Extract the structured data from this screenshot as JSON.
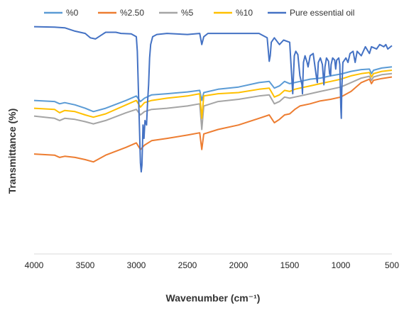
{
  "chart_data": {
    "type": "line",
    "title": "",
    "xlabel": "Wavenumber (cm⁻¹)",
    "ylabel": "Transmittance (%)",
    "xlim": [
      4000,
      500
    ],
    "x_reversed": true,
    "xticks": [
      "4000",
      "3500",
      "3000",
      "2500",
      "2000",
      "1500",
      "1000",
      "500"
    ],
    "y_ticks_shown": false,
    "grid": false,
    "legend_position": "top",
    "series": [
      {
        "name": "%0",
        "color": "#5B9BD5",
        "points": [
          [
            4000,
            63
          ],
          [
            3800,
            62.5
          ],
          [
            3750,
            61.5
          ],
          [
            3700,
            62
          ],
          [
            3600,
            61
          ],
          [
            3500,
            59.5
          ],
          [
            3420,
            58
          ],
          [
            3300,
            59.5
          ],
          [
            3100,
            63
          ],
          [
            3000,
            65
          ],
          [
            2960,
            62.5
          ],
          [
            2920,
            64
          ],
          [
            2850,
            65.5
          ],
          [
            2700,
            66
          ],
          [
            2500,
            66.8
          ],
          [
            2380,
            67.5
          ],
          [
            2360,
            63
          ],
          [
            2340,
            66.5
          ],
          [
            2200,
            68
          ],
          [
            2000,
            69
          ],
          [
            1800,
            71
          ],
          [
            1700,
            71.5
          ],
          [
            1650,
            68.5
          ],
          [
            1600,
            69.5
          ],
          [
            1550,
            71.5
          ],
          [
            1500,
            70.5
          ],
          [
            1450,
            71
          ],
          [
            1400,
            71.5
          ],
          [
            1300,
            72.5
          ],
          [
            1200,
            73
          ],
          [
            1100,
            74
          ],
          [
            1000,
            74.8
          ],
          [
            900,
            76
          ],
          [
            800,
            76.8
          ],
          [
            720,
            77
          ],
          [
            700,
            75
          ],
          [
            680,
            76.5
          ],
          [
            600,
            77.5
          ],
          [
            500,
            78
          ]
        ]
      },
      {
        "name": "%2.50",
        "color": "#ED7D31",
        "points": [
          [
            4000,
            39
          ],
          [
            3800,
            38.5
          ],
          [
            3750,
            37.5
          ],
          [
            3700,
            38
          ],
          [
            3600,
            37.5
          ],
          [
            3500,
            36.5
          ],
          [
            3420,
            35.5
          ],
          [
            3300,
            38.5
          ],
          [
            3100,
            42
          ],
          [
            3000,
            44
          ],
          [
            2960,
            41
          ],
          [
            2920,
            43
          ],
          [
            2850,
            45
          ],
          [
            2700,
            46
          ],
          [
            2500,
            47.5
          ],
          [
            2380,
            48.5
          ],
          [
            2360,
            41
          ],
          [
            2340,
            48
          ],
          [
            2200,
            50
          ],
          [
            2000,
            52
          ],
          [
            1800,
            55
          ],
          [
            1700,
            56.5
          ],
          [
            1650,
            53
          ],
          [
            1600,
            54.5
          ],
          [
            1550,
            56.5
          ],
          [
            1500,
            57
          ],
          [
            1450,
            59
          ],
          [
            1400,
            60.5
          ],
          [
            1300,
            61.5
          ],
          [
            1200,
            62.8
          ],
          [
            1100,
            63.5
          ],
          [
            1000,
            64.5
          ],
          [
            900,
            67
          ],
          [
            800,
            71
          ],
          [
            720,
            72.5
          ],
          [
            700,
            70.5
          ],
          [
            680,
            72
          ],
          [
            600,
            72.8
          ],
          [
            500,
            73.5
          ]
        ]
      },
      {
        "name": "%5",
        "color": "#A5A5A5",
        "points": [
          [
            4000,
            56
          ],
          [
            3800,
            55
          ],
          [
            3750,
            54
          ],
          [
            3700,
            55
          ],
          [
            3600,
            54.5
          ],
          [
            3500,
            53.5
          ],
          [
            3420,
            52.5
          ],
          [
            3300,
            54
          ],
          [
            3100,
            57.5
          ],
          [
            3000,
            59
          ],
          [
            2960,
            56.5
          ],
          [
            2920,
            58
          ],
          [
            2850,
            59
          ],
          [
            2700,
            59.5
          ],
          [
            2500,
            60.5
          ],
          [
            2380,
            61.5
          ],
          [
            2360,
            50
          ],
          [
            2340,
            60.5
          ],
          [
            2200,
            62.5
          ],
          [
            2000,
            63.5
          ],
          [
            1800,
            65
          ],
          [
            1700,
            65.5
          ],
          [
            1650,
            61.5
          ],
          [
            1600,
            62.5
          ],
          [
            1550,
            64.5
          ],
          [
            1500,
            64
          ],
          [
            1450,
            64.5
          ],
          [
            1400,
            65
          ],
          [
            1300,
            66
          ],
          [
            1200,
            67
          ],
          [
            1100,
            68
          ],
          [
            1000,
            69
          ],
          [
            900,
            71
          ],
          [
            800,
            73
          ],
          [
            720,
            73.8
          ],
          [
            700,
            72
          ],
          [
            680,
            73.5
          ],
          [
            600,
            74.5
          ],
          [
            500,
            75
          ]
        ]
      },
      {
        "name": "%10",
        "color": "#FFC000",
        "points": [
          [
            4000,
            59.5
          ],
          [
            3800,
            59
          ],
          [
            3750,
            57.5
          ],
          [
            3700,
            58.5
          ],
          [
            3600,
            58
          ],
          [
            3500,
            56.5
          ],
          [
            3420,
            55.5
          ],
          [
            3300,
            57
          ],
          [
            3100,
            61
          ],
          [
            3000,
            63
          ],
          [
            2960,
            60
          ],
          [
            2920,
            62
          ],
          [
            2850,
            63
          ],
          [
            2700,
            64
          ],
          [
            2500,
            65
          ],
          [
            2380,
            66
          ],
          [
            2360,
            55
          ],
          [
            2340,
            65
          ],
          [
            2200,
            66
          ],
          [
            2000,
            66.5
          ],
          [
            1800,
            68
          ],
          [
            1700,
            68.5
          ],
          [
            1650,
            64.5
          ],
          [
            1600,
            65.5
          ],
          [
            1550,
            67.5
          ],
          [
            1500,
            67
          ],
          [
            1450,
            68
          ],
          [
            1400,
            68.5
          ],
          [
            1300,
            69.5
          ],
          [
            1200,
            70.5
          ],
          [
            1100,
            71.5
          ],
          [
            1000,
            72.5
          ],
          [
            900,
            74
          ],
          [
            800,
            75
          ],
          [
            720,
            75.5
          ],
          [
            700,
            73.5
          ],
          [
            680,
            75
          ],
          [
            600,
            76
          ],
          [
            500,
            76.5
          ]
        ]
      },
      {
        "name": "Pure essential oil",
        "color": "#4472C4",
        "points": [
          [
            4000,
            96
          ],
          [
            3800,
            95.8
          ],
          [
            3700,
            95.5
          ],
          [
            3600,
            94
          ],
          [
            3500,
            93
          ],
          [
            3450,
            91
          ],
          [
            3400,
            90.5
          ],
          [
            3350,
            92
          ],
          [
            3300,
            93.5
          ],
          [
            3200,
            93.5
          ],
          [
            3150,
            93
          ],
          [
            3050,
            92.8
          ],
          [
            3000,
            91.5
          ],
          [
            2990,
            85
          ],
          [
            2975,
            60
          ],
          [
            2960,
            35
          ],
          [
            2952,
            31
          ],
          [
            2945,
            34
          ],
          [
            2935,
            52
          ],
          [
            2925,
            46
          ],
          [
            2915,
            54
          ],
          [
            2900,
            52
          ],
          [
            2890,
            62
          ],
          [
            2880,
            70
          ],
          [
            2870,
            82
          ],
          [
            2860,
            88
          ],
          [
            2840,
            91.5
          ],
          [
            2800,
            92.5
          ],
          [
            2700,
            93
          ],
          [
            2500,
            92.5
          ],
          [
            2380,
            93
          ],
          [
            2360,
            88
          ],
          [
            2340,
            91.5
          ],
          [
            2300,
            93
          ],
          [
            2000,
            93
          ],
          [
            1800,
            93
          ],
          [
            1720,
            91
          ],
          [
            1700,
            80.5
          ],
          [
            1690,
            83
          ],
          [
            1680,
            89
          ],
          [
            1650,
            91
          ],
          [
            1600,
            88
          ],
          [
            1560,
            90
          ],
          [
            1500,
            89
          ],
          [
            1470,
            66
          ],
          [
            1455,
            83
          ],
          [
            1440,
            85
          ],
          [
            1420,
            83.5
          ],
          [
            1400,
            74
          ],
          [
            1380,
            70
          ],
          [
            1375,
            66
          ],
          [
            1365,
            80
          ],
          [
            1350,
            83
          ],
          [
            1330,
            80
          ],
          [
            1320,
            78
          ],
          [
            1300,
            83
          ],
          [
            1270,
            84
          ],
          [
            1240,
            74
          ],
          [
            1230,
            71
          ],
          [
            1220,
            80
          ],
          [
            1200,
            82
          ],
          [
            1180,
            79
          ],
          [
            1165,
            70
          ],
          [
            1155,
            78
          ],
          [
            1140,
            82
          ],
          [
            1120,
            80.5
          ],
          [
            1110,
            75
          ],
          [
            1100,
            74
          ],
          [
            1095,
            79
          ],
          [
            1080,
            82
          ],
          [
            1060,
            81
          ],
          [
            1050,
            77
          ],
          [
            1040,
            81
          ],
          [
            1020,
            82
          ],
          [
            1010,
            79
          ],
          [
            1000,
            60
          ],
          [
            995,
            55
          ],
          [
            990,
            68
          ],
          [
            980,
            80
          ],
          [
            950,
            82
          ],
          [
            930,
            80
          ],
          [
            910,
            84
          ],
          [
            880,
            85
          ],
          [
            860,
            80
          ],
          [
            840,
            85
          ],
          [
            800,
            83
          ],
          [
            760,
            87
          ],
          [
            720,
            84
          ],
          [
            700,
            87
          ],
          [
            650,
            86
          ],
          [
            620,
            88
          ],
          [
            580,
            87
          ],
          [
            560,
            88
          ],
          [
            540,
            86
          ],
          [
            500,
            87.5
          ]
        ]
      }
    ]
  }
}
